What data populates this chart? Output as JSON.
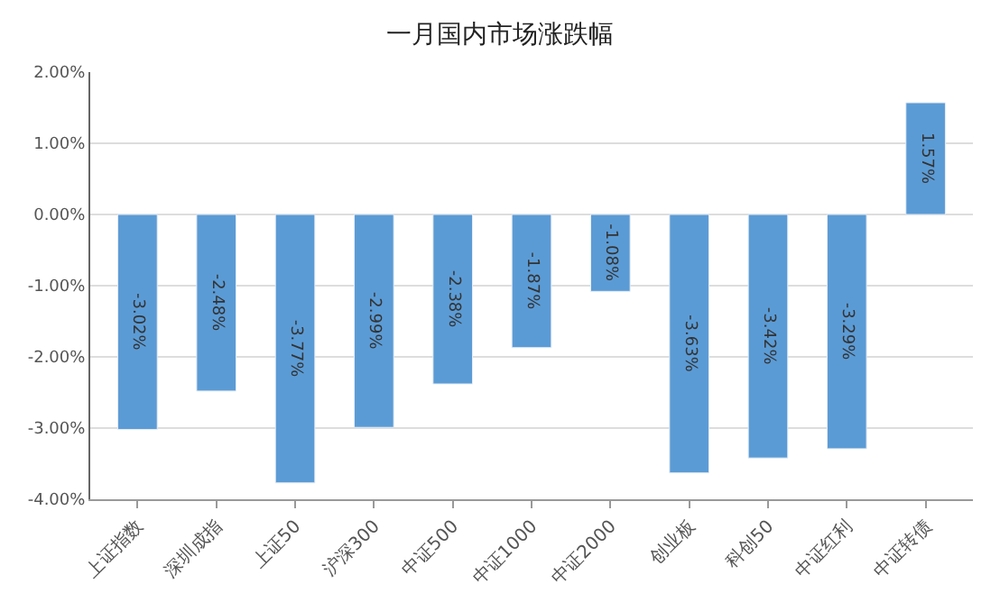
{
  "chart_data": {
    "type": "bar",
    "title": "一月国内市场涨跌幅",
    "categories": [
      "上证指数",
      "深圳成指",
      "上证50",
      "沪深300",
      "中证500",
      "中证1000",
      "中证2000",
      "创业板",
      "科创50",
      "中证红利",
      "中证转债"
    ],
    "values": [
      -3.02,
      -2.48,
      -3.77,
      -2.99,
      -2.38,
      -1.87,
      -1.08,
      -3.63,
      -3.42,
      -3.29,
      1.57
    ],
    "value_labels": [
      "-3.02%",
      "-2.48%",
      "-3.77%",
      "-2.99%",
      "-2.38%",
      "-1.87%",
      "-1.08%",
      "-3.63%",
      "-3.42%",
      "-3.29%",
      "1.57%"
    ],
    "color": "#5b9bd5",
    "ylim": [
      -4,
      2
    ],
    "yticks": [
      {
        "value": -4,
        "label": "-4.00%"
      },
      {
        "value": -3,
        "label": "-3.00%"
      },
      {
        "value": -2,
        "label": "-2.00%"
      },
      {
        "value": -1,
        "label": "-1.00%"
      },
      {
        "value": 0,
        "label": "0.00%"
      },
      {
        "value": 1,
        "label": "1.00%"
      },
      {
        "value": 2,
        "label": "2.00%"
      }
    ],
    "grid": "y"
  }
}
